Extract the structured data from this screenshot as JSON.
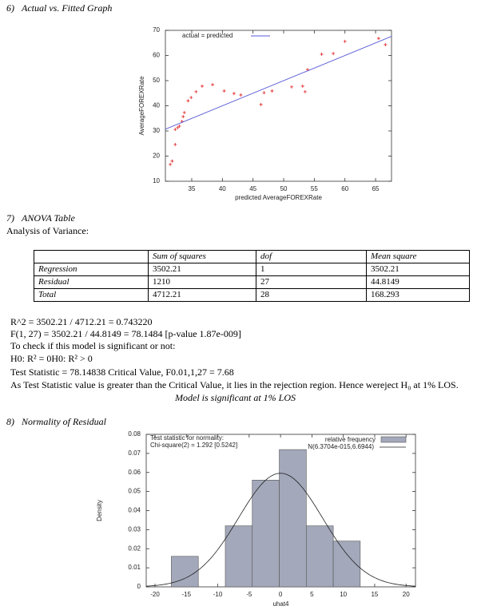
{
  "sections": [
    {
      "number": "6)",
      "title": "Actual vs. Fitted Graph"
    },
    {
      "number": "7)",
      "title": "ANOVA Table",
      "subtitle": "Analysis of Variance:"
    },
    {
      "number": "8)",
      "title": "Normality of Residual"
    }
  ],
  "chart_data": [
    {
      "type": "scatter",
      "xlabel": "predicted AverageFOREXRate",
      "ylabel": "AverageFOREXRate",
      "xlim": [
        30.7,
        67.6
      ],
      "ylim": [
        10,
        70
      ],
      "xticks": [
        35,
        40,
        45,
        50,
        55,
        60,
        65
      ],
      "yticks": [
        10,
        20,
        30,
        40,
        50,
        60,
        70
      ],
      "series": [
        {
          "color": "#e02020",
          "x": [
            31.5,
            31.8,
            32.3,
            32.3,
            32.7,
            33.0,
            33.4,
            33.6,
            33.8,
            34.4,
            34.9,
            35.7,
            36.7,
            38.4,
            40.3,
            41.9,
            43.0,
            46.3,
            46.8,
            48.1,
            51.3,
            53.1,
            53.5,
            53.9,
            56.2,
            58.1,
            60.0,
            65.5,
            66.6
          ],
          "values": [
            16.7,
            18.0,
            24.6,
            30.6,
            31.3,
            31.9,
            33.8,
            35.7,
            37.3,
            42.0,
            43.3,
            45.6,
            47.8,
            48.4,
            45.9,
            44.9,
            44.3,
            40.5,
            45.2,
            45.9,
            47.5,
            47.8,
            45.6,
            54.4,
            60.5,
            60.8,
            65.6,
            66.8,
            64.3
          ]
        },
        {
          "name": "actual = predicted",
          "color": "#5a5ad8",
          "x": [
            30.7,
            67.6
          ],
          "values": [
            30.7,
            67.6
          ]
        }
      ]
    },
    {
      "type": "histogram",
      "xlabel": "uhat4",
      "ylabel": "Density",
      "xlim": [
        -21.4,
        21.5
      ],
      "ylim": [
        0,
        0.08
      ],
      "xticks": [
        -20,
        -15,
        -10,
        -5,
        0,
        5,
        10,
        15,
        20
      ],
      "yticks": [
        0,
        0.01,
        0.02,
        0.03,
        0.04,
        0.05,
        0.06,
        0.07,
        0.08
      ],
      "name": "relative frequency",
      "color": "#a3a8ba",
      "bins": [
        -17.4,
        -13.1,
        -8.8,
        -4.5,
        -0.2,
        4.1,
        8.4,
        12.7
      ],
      "values": [
        0.016,
        0,
        0.032,
        0.056,
        0.072,
        0.032,
        0.024
      ],
      "curve": {
        "name": "N(6.3704e-015,6.6944)",
        "mean": 6.3704e-15,
        "sd": 6.6944,
        "color": "#222222"
      },
      "annotations": [
        "Test statistic for normality:",
        "Chi-square(2) = 1.292 [0.5242]"
      ]
    }
  ],
  "table": {
    "header": [
      "Sum of squares",
      "dof",
      "Mean square"
    ],
    "rows": [
      [
        "Regression",
        3502.21,
        1,
        3502.21
      ],
      [
        "Residual",
        1210,
        27,
        44.8149
      ],
      [
        "Total",
        4712.21,
        28,
        168.293
      ]
    ]
  },
  "notes": [
    "R^2 = 3502.21 / 4712.21 = 0.743220",
    "F(1, 27) = 3502.21 / 44.8149 = 78.1484 [p-value 1.87e-009]",
    "To check if this model is significant or not:",
    "H0: R² = 0H0: R² > 0",
    "Test Statistic = 78.14838 Critical Value, F0.01,1,27 = 7.68",
    "As Test Statistic value is greater than the Critical Value, it lies in the rejection region. Hence wereject H₀ at 1% LOS.",
    "Model is significant at 1% LOS"
  ]
}
